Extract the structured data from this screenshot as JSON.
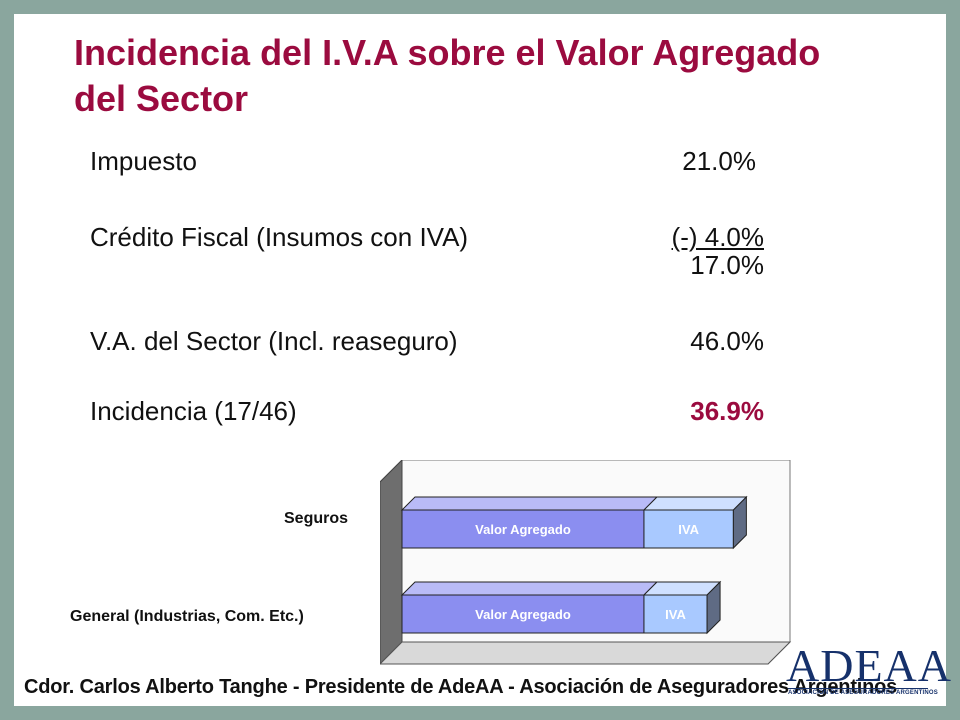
{
  "slide": {
    "title": "Incidencia del I.V.A sobre el Valor Agregado del Sector",
    "rows": [
      {
        "label": "Impuesto",
        "value": "21.0%"
      },
      {
        "label": "Crédito Fiscal (Insumos con IVA)",
        "value": "(-) 4.0%"
      },
      {
        "label": "",
        "value": "17.0%"
      },
      {
        "label": "V.A. del Sector (Incl. reaseguro)",
        "value": "46.0%"
      },
      {
        "label": "Incidencia (17/46)",
        "value": "36.9%"
      }
    ],
    "accent_color": "#9b0b3f",
    "footer": "Cdor. Carlos Alberto Tanghe - Presidente de AdeAA - Asociación de Aseguradores Argentinos",
    "logo": {
      "name": "ADEAA",
      "subtitle": "ASOCIACION DE ASEGURADORES ARGENTINOS"
    }
  },
  "chart_data": {
    "type": "bar",
    "orientation": "horizontal",
    "stacked": true,
    "categories": [
      "Seguros",
      "General (Industrias, Com. Etc.)"
    ],
    "series": [
      {
        "name": "Valor Agregado",
        "values": [
          46,
          46
        ],
        "color": "#8b8ef0"
      },
      {
        "name": "IVA",
        "values": [
          17,
          12
        ],
        "color": "#a9c9ff"
      }
    ],
    "segment_labels": [
      "Valor Agregado",
      "IVA"
    ],
    "grid": false,
    "style": "3d"
  }
}
